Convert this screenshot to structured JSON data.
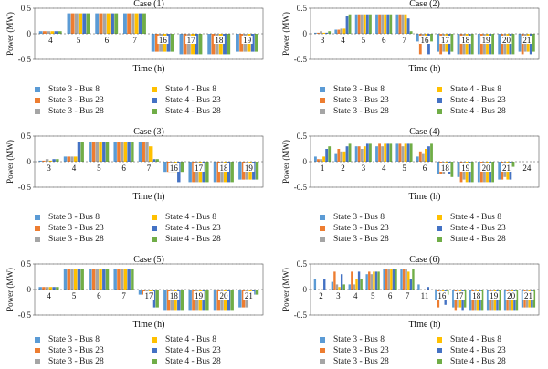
{
  "colors": {
    "state3_bus8": "#5b9bd5",
    "state3_bus23": "#ed7d31",
    "state3_bus28": "#a5a5a5",
    "state4_bus8": "#ffc000",
    "state4_bus23": "#4472c4",
    "state4_bus28": "#70ad47"
  },
  "legend": [
    {
      "label": "State 3 - Bus 8",
      "color_key": "state3_bus8"
    },
    {
      "label": "State 4 - Bus 8",
      "color_key": "state4_bus8"
    },
    {
      "label": "State 3 - Bus 23",
      "color_key": "state3_bus23"
    },
    {
      "label": "State 4 - Bus 23",
      "color_key": "state4_bus23"
    },
    {
      "label": "State 3 - Bus 28",
      "color_key": "state3_bus28"
    },
    {
      "label": "State 4 - Bus 28",
      "color_key": "state4_bus28"
    }
  ],
  "chart_data": [
    {
      "type": "bar",
      "title": "Case (1)",
      "xlabel": "Time (h)",
      "ylabel": "Power (MW)",
      "ylim": [
        -0.5,
        0.5
      ],
      "yticks": [
        -0.5,
        0,
        0.5
      ],
      "categories": [
        "4",
        "5",
        "6",
        "7",
        "16",
        "17",
        "18",
        "19"
      ],
      "series": [
        {
          "name": "State 3 - Bus 8",
          "values": [
            0.05,
            0.4,
            0.4,
            0.4,
            -0.35,
            -0.4,
            -0.4,
            -0.35
          ]
        },
        {
          "name": "State 3 - Bus 23",
          "values": [
            0.05,
            0.4,
            0.4,
            0.4,
            -0.35,
            -0.4,
            -0.4,
            -0.35
          ]
        },
        {
          "name": "State 3 - Bus 28",
          "values": [
            0.05,
            0.4,
            0.4,
            0.4,
            -0.35,
            -0.4,
            -0.4,
            -0.35
          ]
        },
        {
          "name": "State 4 - Bus 8",
          "values": [
            0.05,
            0.4,
            0.4,
            0.4,
            -0.35,
            -0.4,
            -0.4,
            -0.35
          ]
        },
        {
          "name": "State 4 - Bus 23",
          "values": [
            0.05,
            0.4,
            0.4,
            0.4,
            -0.35,
            -0.4,
            -0.4,
            -0.35
          ]
        },
        {
          "name": "State 4 - Bus 28",
          "values": [
            0.05,
            0.4,
            0.4,
            0.4,
            -0.35,
            -0.4,
            -0.4,
            -0.35
          ]
        }
      ]
    },
    {
      "type": "bar",
      "title": "Case (2)",
      "xlabel": "Time (h)",
      "ylabel": "Power (MW)",
      "ylim": [
        -0.5,
        0.5
      ],
      "yticks": [
        -0.5,
        0,
        0.5
      ],
      "categories": [
        "3",
        "4",
        "5",
        "6",
        "7",
        "16",
        "17",
        "18",
        "19",
        "20",
        "21"
      ],
      "series": [
        {
          "name": "State 3 - Bus 8",
          "values": [
            0.02,
            0.08,
            0.38,
            0.38,
            0.38,
            -0.15,
            -0.35,
            -0.4,
            -0.4,
            -0.4,
            -0.35
          ]
        },
        {
          "name": "State 3 - Bus 23",
          "values": [
            0.02,
            0.08,
            0.38,
            0.38,
            0.38,
            -0.4,
            -0.4,
            -0.4,
            -0.4,
            -0.4,
            -0.4
          ]
        },
        {
          "name": "State 3 - Bus 28",
          "values": [
            0.05,
            0.1,
            0.38,
            0.38,
            0.38,
            -0.15,
            -0.35,
            -0.4,
            -0.4,
            -0.4,
            -0.35
          ]
        },
        {
          "name": "State 4 - Bus 8",
          "values": [
            0.02,
            0.1,
            0.38,
            0.38,
            0.38,
            -0.15,
            -0.35,
            -0.4,
            -0.4,
            -0.4,
            -0.35
          ]
        },
        {
          "name": "State 4 - Bus 23",
          "values": [
            0.02,
            0.35,
            0.38,
            0.38,
            0.3,
            -0.4,
            -0.4,
            -0.4,
            -0.4,
            -0.4,
            -0.4
          ]
        },
        {
          "name": "State 4 - Bus 28",
          "values": [
            0.05,
            0.38,
            0.38,
            0.38,
            0.05,
            -0.15,
            -0.35,
            -0.4,
            -0.4,
            -0.4,
            -0.35
          ]
        }
      ]
    },
    {
      "type": "bar",
      "title": "Case (3)",
      "xlabel": "Time (h)",
      "ylabel": "Power (MW)",
      "ylim": [
        -0.5,
        0.5
      ],
      "yticks": [
        -0.5,
        0,
        0.5
      ],
      "categories": [
        "3",
        "4",
        "5",
        "6",
        "7",
        "16",
        "17",
        "18",
        "19"
      ],
      "series": [
        {
          "name": "State 3 - Bus 8",
          "values": [
            0.02,
            0.1,
            0.38,
            0.38,
            0.38,
            -0.2,
            -0.4,
            -0.4,
            -0.35
          ]
        },
        {
          "name": "State 3 - Bus 23",
          "values": [
            0.02,
            0.1,
            0.38,
            0.38,
            0.38,
            -0.2,
            -0.4,
            -0.4,
            -0.35
          ]
        },
        {
          "name": "State 3 - Bus 28",
          "values": [
            0.05,
            0.1,
            0.38,
            0.38,
            0.38,
            -0.2,
            -0.4,
            -0.4,
            -0.35
          ]
        },
        {
          "name": "State 4 - Bus 8",
          "values": [
            0.02,
            0.1,
            0.38,
            0.38,
            0.3,
            -0.2,
            -0.4,
            -0.4,
            -0.35
          ]
        },
        {
          "name": "State 4 - Bus 23",
          "values": [
            0.05,
            0.38,
            0.38,
            0.38,
            0.05,
            -0.4,
            -0.4,
            -0.4,
            -0.35
          ]
        },
        {
          "name": "State 4 - Bus 28",
          "values": [
            0.05,
            0.38,
            0.38,
            0.38,
            0.05,
            -0.2,
            -0.4,
            -0.4,
            -0.35
          ]
        }
      ]
    },
    {
      "type": "bar",
      "title": "Case (4)",
      "xlabel": "Time (h)",
      "ylabel": "Power (MW)",
      "ylim": [
        -0.5,
        0.5
      ],
      "yticks": [
        -0.5,
        0,
        0.5
      ],
      "categories": [
        "1",
        "2",
        "3",
        "4",
        "5",
        "6",
        "18",
        "19",
        "20",
        "21",
        "24"
      ],
      "series": [
        {
          "name": "State 3 - Bus 8",
          "values": [
            0.1,
            0.15,
            0.3,
            0.3,
            0.35,
            0.1,
            -0.25,
            -0.3,
            -0.4,
            -0.35,
            0.0
          ]
        },
        {
          "name": "State 3 - Bus 23",
          "values": [
            0.05,
            0.25,
            0.3,
            0.35,
            0.35,
            0.2,
            -0.25,
            -0.4,
            -0.4,
            -0.35,
            0.0
          ]
        },
        {
          "name": "State 3 - Bus 28",
          "values": [
            0.05,
            0.2,
            0.25,
            0.3,
            0.3,
            0.15,
            -0.25,
            -0.35,
            -0.4,
            -0.3,
            0.0
          ]
        },
        {
          "name": "State 4 - Bus 8",
          "values": [
            0.1,
            0.2,
            0.3,
            0.35,
            0.35,
            0.25,
            -0.15,
            -0.4,
            -0.4,
            -0.35,
            0.0
          ]
        },
        {
          "name": "State 4 - Bus 23",
          "values": [
            0.25,
            0.3,
            0.35,
            0.35,
            0.35,
            0.3,
            -0.25,
            -0.4,
            -0.4,
            -0.35,
            0.0
          ]
        },
        {
          "name": "State 4 - Bus 28",
          "values": [
            0.3,
            0.35,
            0.35,
            0.35,
            0.35,
            0.35,
            -0.3,
            -0.4,
            -0.4,
            -0.1,
            0.0
          ]
        }
      ]
    },
    {
      "type": "bar",
      "title": "Case (5)",
      "xlabel": "Time (h)",
      "ylabel": "Power (MW)",
      "ylim": [
        -0.5,
        0.5
      ],
      "yticks": [
        -0.5,
        0,
        0.5
      ],
      "categories": [
        "4",
        "5",
        "6",
        "7",
        "17",
        "18",
        "19",
        "20",
        "21"
      ],
      "series": [
        {
          "name": "State 3 - Bus 8",
          "values": [
            0.05,
            0.4,
            0.4,
            0.4,
            -0.1,
            -0.4,
            -0.4,
            -0.4,
            -0.35
          ]
        },
        {
          "name": "State 3 - Bus 23",
          "values": [
            0.05,
            0.4,
            0.4,
            0.4,
            -0.1,
            -0.4,
            -0.4,
            -0.4,
            -0.35
          ]
        },
        {
          "name": "State 3 - Bus 28",
          "values": [
            0.05,
            0.4,
            0.4,
            0.4,
            -0.1,
            -0.4,
            -0.4,
            -0.4,
            -0.35
          ]
        },
        {
          "name": "State 4 - Bus 8",
          "values": [
            0.05,
            0.4,
            0.4,
            0.4,
            -0.1,
            -0.4,
            -0.4,
            -0.4,
            -0.1
          ]
        },
        {
          "name": "State 4 - Bus 23",
          "values": [
            0.05,
            0.4,
            0.4,
            0.4,
            -0.35,
            -0.4,
            -0.4,
            -0.4,
            -0.1
          ]
        },
        {
          "name": "State 4 - Bus 28",
          "values": [
            0.05,
            0.4,
            0.4,
            0.4,
            -0.35,
            -0.4,
            -0.4,
            -0.4,
            -0.1
          ]
        }
      ]
    },
    {
      "type": "bar",
      "title": "Case (6)",
      "xlabel": "Time (h)",
      "ylabel": "Power (MW)",
      "ylim": [
        -0.5,
        0.5
      ],
      "yticks": [
        -0.5,
        0,
        0.5
      ],
      "categories": [
        "2",
        "3",
        "4",
        "5",
        "6",
        "7",
        "11",
        "16",
        "17",
        "18",
        "19",
        "20",
        "21"
      ],
      "series": [
        {
          "name": "State 3 - Bus 8",
          "values": [
            0.2,
            0.15,
            0.1,
            0.3,
            0.4,
            0.4,
            0.1,
            -0.2,
            -0.35,
            -0.4,
            -0.4,
            -0.4,
            -0.35
          ]
        },
        {
          "name": "State 3 - Bus 23",
          "values": [
            0.0,
            0.35,
            0.35,
            0.35,
            0.4,
            0.4,
            0.0,
            -0.35,
            -0.4,
            -0.4,
            -0.4,
            -0.4,
            -0.35
          ]
        },
        {
          "name": "State 3 - Bus 28",
          "values": [
            0.0,
            0.1,
            0.1,
            0.3,
            0.4,
            0.4,
            0.0,
            -0.2,
            -0.35,
            -0.4,
            -0.4,
            -0.4,
            -0.35
          ]
        },
        {
          "name": "State 4 - Bus 8",
          "values": [
            0.0,
            0.05,
            0.2,
            0.35,
            0.4,
            0.35,
            0.0,
            -0.1,
            -0.35,
            -0.4,
            -0.4,
            -0.4,
            -0.35
          ]
        },
        {
          "name": "State 4 - Bus 23",
          "values": [
            0.2,
            0.3,
            0.35,
            0.35,
            0.4,
            0.2,
            0.05,
            -0.3,
            -0.4,
            -0.4,
            -0.4,
            -0.4,
            -0.35
          ]
        },
        {
          "name": "State 4 - Bus 28",
          "values": [
            0.0,
            0.1,
            0.2,
            0.35,
            0.4,
            0.4,
            0.0,
            -0.1,
            -0.35,
            -0.4,
            -0.4,
            -0.4,
            -0.35
          ]
        }
      ]
    }
  ]
}
